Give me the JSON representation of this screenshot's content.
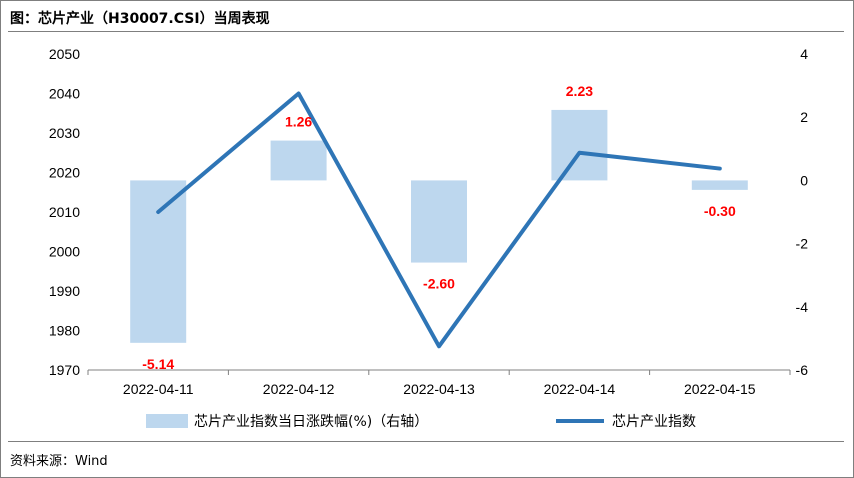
{
  "title": "图：芯片产业（H30007.CSI）当周表现",
  "source": "资料来源：Wind",
  "chart_data": {
    "type": "bar+line",
    "categories": [
      "2022-04-11",
      "2022-04-12",
      "2022-04-13",
      "2022-04-14",
      "2022-04-15"
    ],
    "series": [
      {
        "name": "芯片产业指数当日涨跌幅(%)（右轴）",
        "type": "bar",
        "axis": "right",
        "values": [
          -5.14,
          1.26,
          -2.6,
          2.23,
          -0.3
        ],
        "labels": [
          "-5.14",
          "1.26",
          "-2.60",
          "2.23",
          "-0.30"
        ],
        "color": "#bdd7ee",
        "label_color": "#ff0000"
      },
      {
        "name": "芯片产业指数",
        "type": "line",
        "axis": "left",
        "values": [
          2010,
          2040,
          1976,
          2025,
          2021
        ],
        "color": "#2e75b6"
      }
    ],
    "y_left": {
      "min": 1970,
      "max": 2050,
      "step": 10,
      "ticks": [
        "2050",
        "2040",
        "2030",
        "2020",
        "2010",
        "2000",
        "1990",
        "1980",
        "1970"
      ]
    },
    "y_right": {
      "min": -6,
      "max": 4,
      "step": 2,
      "ticks": [
        "4",
        "2",
        "0",
        "-2",
        "-4",
        "-6"
      ]
    },
    "grid": false,
    "legend_position": "bottom"
  }
}
